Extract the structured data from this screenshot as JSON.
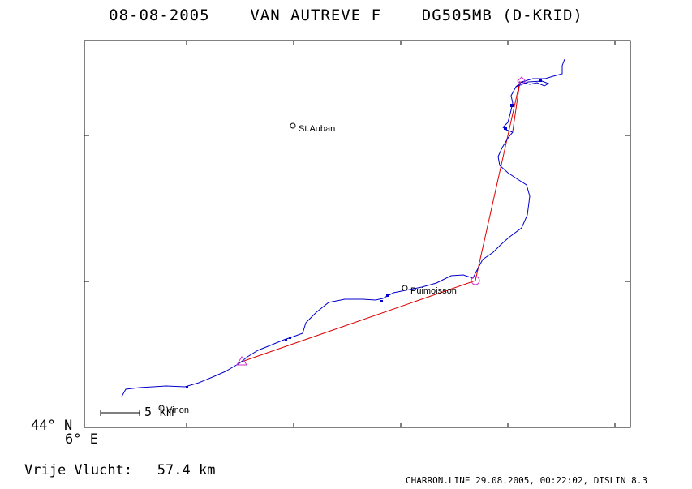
{
  "header": {
    "date": "08-08-2005",
    "pilot": "VAN AUTREVE F",
    "glider": "DG505MB (D-KRID)"
  },
  "axes": {
    "lat_label": "44° N",
    "lon_label": "6° E"
  },
  "places": [
    {
      "name": "St.Auban"
    },
    {
      "name": "Puimoisson"
    },
    {
      "name": "Vinon"
    }
  ],
  "scale": {
    "label": "5 km"
  },
  "summary": {
    "label": "Vrije Vlucht:",
    "value": "57.4 km"
  },
  "footer": {
    "text": "CHARRON.LINE 29.08.2005, 00:22:02, DISLIN 8.3"
  },
  "colors": {
    "track": "#0000cc",
    "task": "#dd0000",
    "marker": "#cc33cc"
  }
}
